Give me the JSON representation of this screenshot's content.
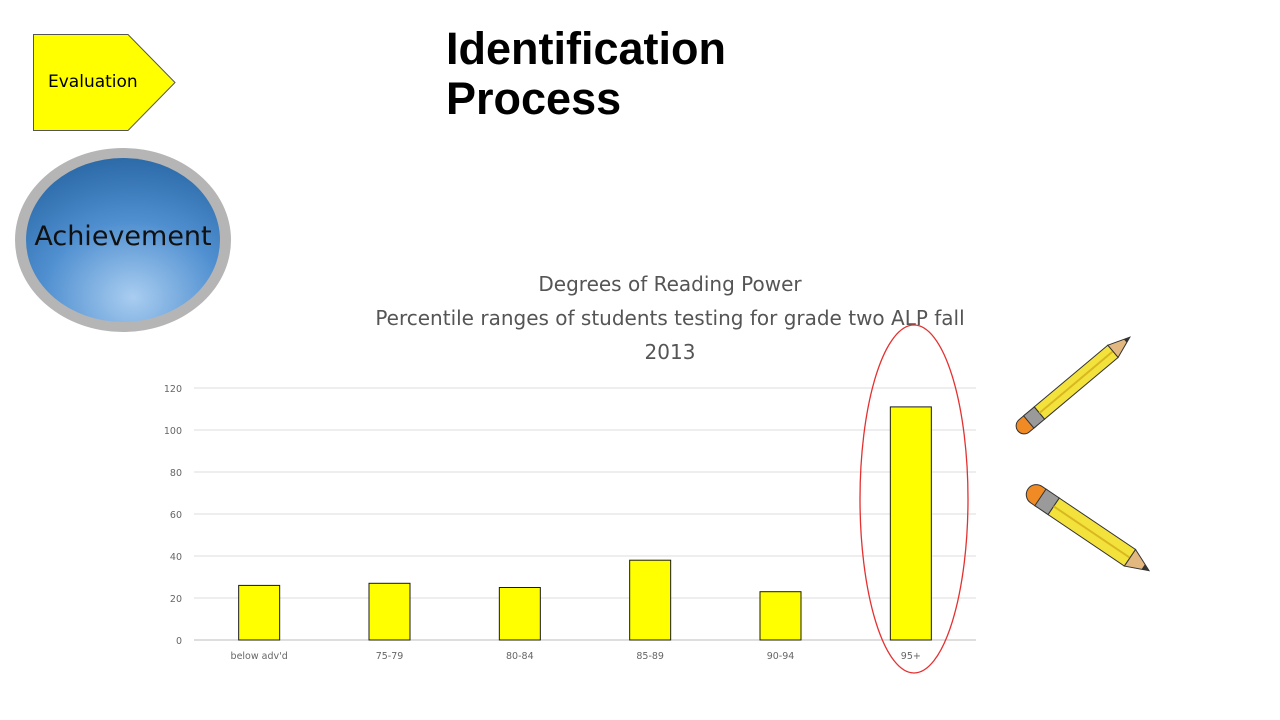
{
  "header": {
    "step_label": "Evaluation",
    "title_line1": "Identification",
    "title_line2": "Process"
  },
  "badge": {
    "label": "Achievement"
  },
  "colors": {
    "step_fill": "#ffff00",
    "bar_fill": "#ffff00",
    "highlight_outline": "#e53030",
    "badge_fill": "#3f7fc0"
  },
  "icons": [
    "pencil-icon",
    "pencil-icon"
  ],
  "chart_data": {
    "type": "bar",
    "title_lines": [
      "Degrees of Reading Power",
      "Percentile ranges of students testing for grade two ALP fall",
      "2013"
    ],
    "categories": [
      "below adv'd",
      "75-79",
      "80-84",
      "85-89",
      "90-94",
      "95+"
    ],
    "values": [
      26,
      27,
      25,
      38,
      23,
      111
    ],
    "ylim": [
      0,
      120
    ],
    "yticks": [
      "0",
      "20",
      "40",
      "60",
      "80",
      "100",
      "120"
    ],
    "grid": true,
    "highlighted_category": "95+"
  }
}
